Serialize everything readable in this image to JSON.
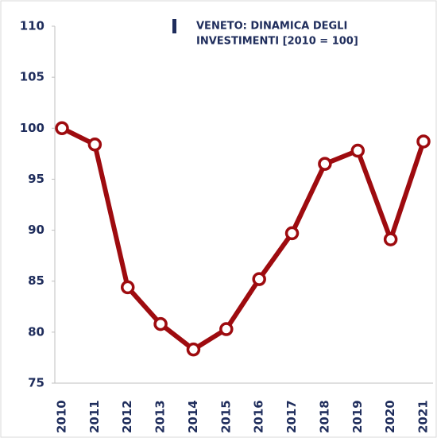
{
  "chart_data": {
    "type": "line",
    "title": [
      "VENETO: DINAMICA DEGLI",
      "INVESTIMENTI [2010 = 100]"
    ],
    "categories": [
      "2010",
      "2011",
      "2012",
      "2013",
      "2014",
      "2015",
      "2016",
      "2017",
      "2018",
      "2019",
      "2020",
      "2021"
    ],
    "series": [
      {
        "name": null,
        "color": "#9e0b0f",
        "values": [
          100,
          98.4,
          84.4,
          80.8,
          78.3,
          80.3,
          85.2,
          89.7,
          96.5,
          97.8,
          89.1,
          98.7
        ]
      }
    ],
    "ylim": [
      75,
      110
    ],
    "yticks": [
      75,
      80,
      85,
      90,
      95,
      100,
      105,
      110
    ],
    "grid": false
  }
}
